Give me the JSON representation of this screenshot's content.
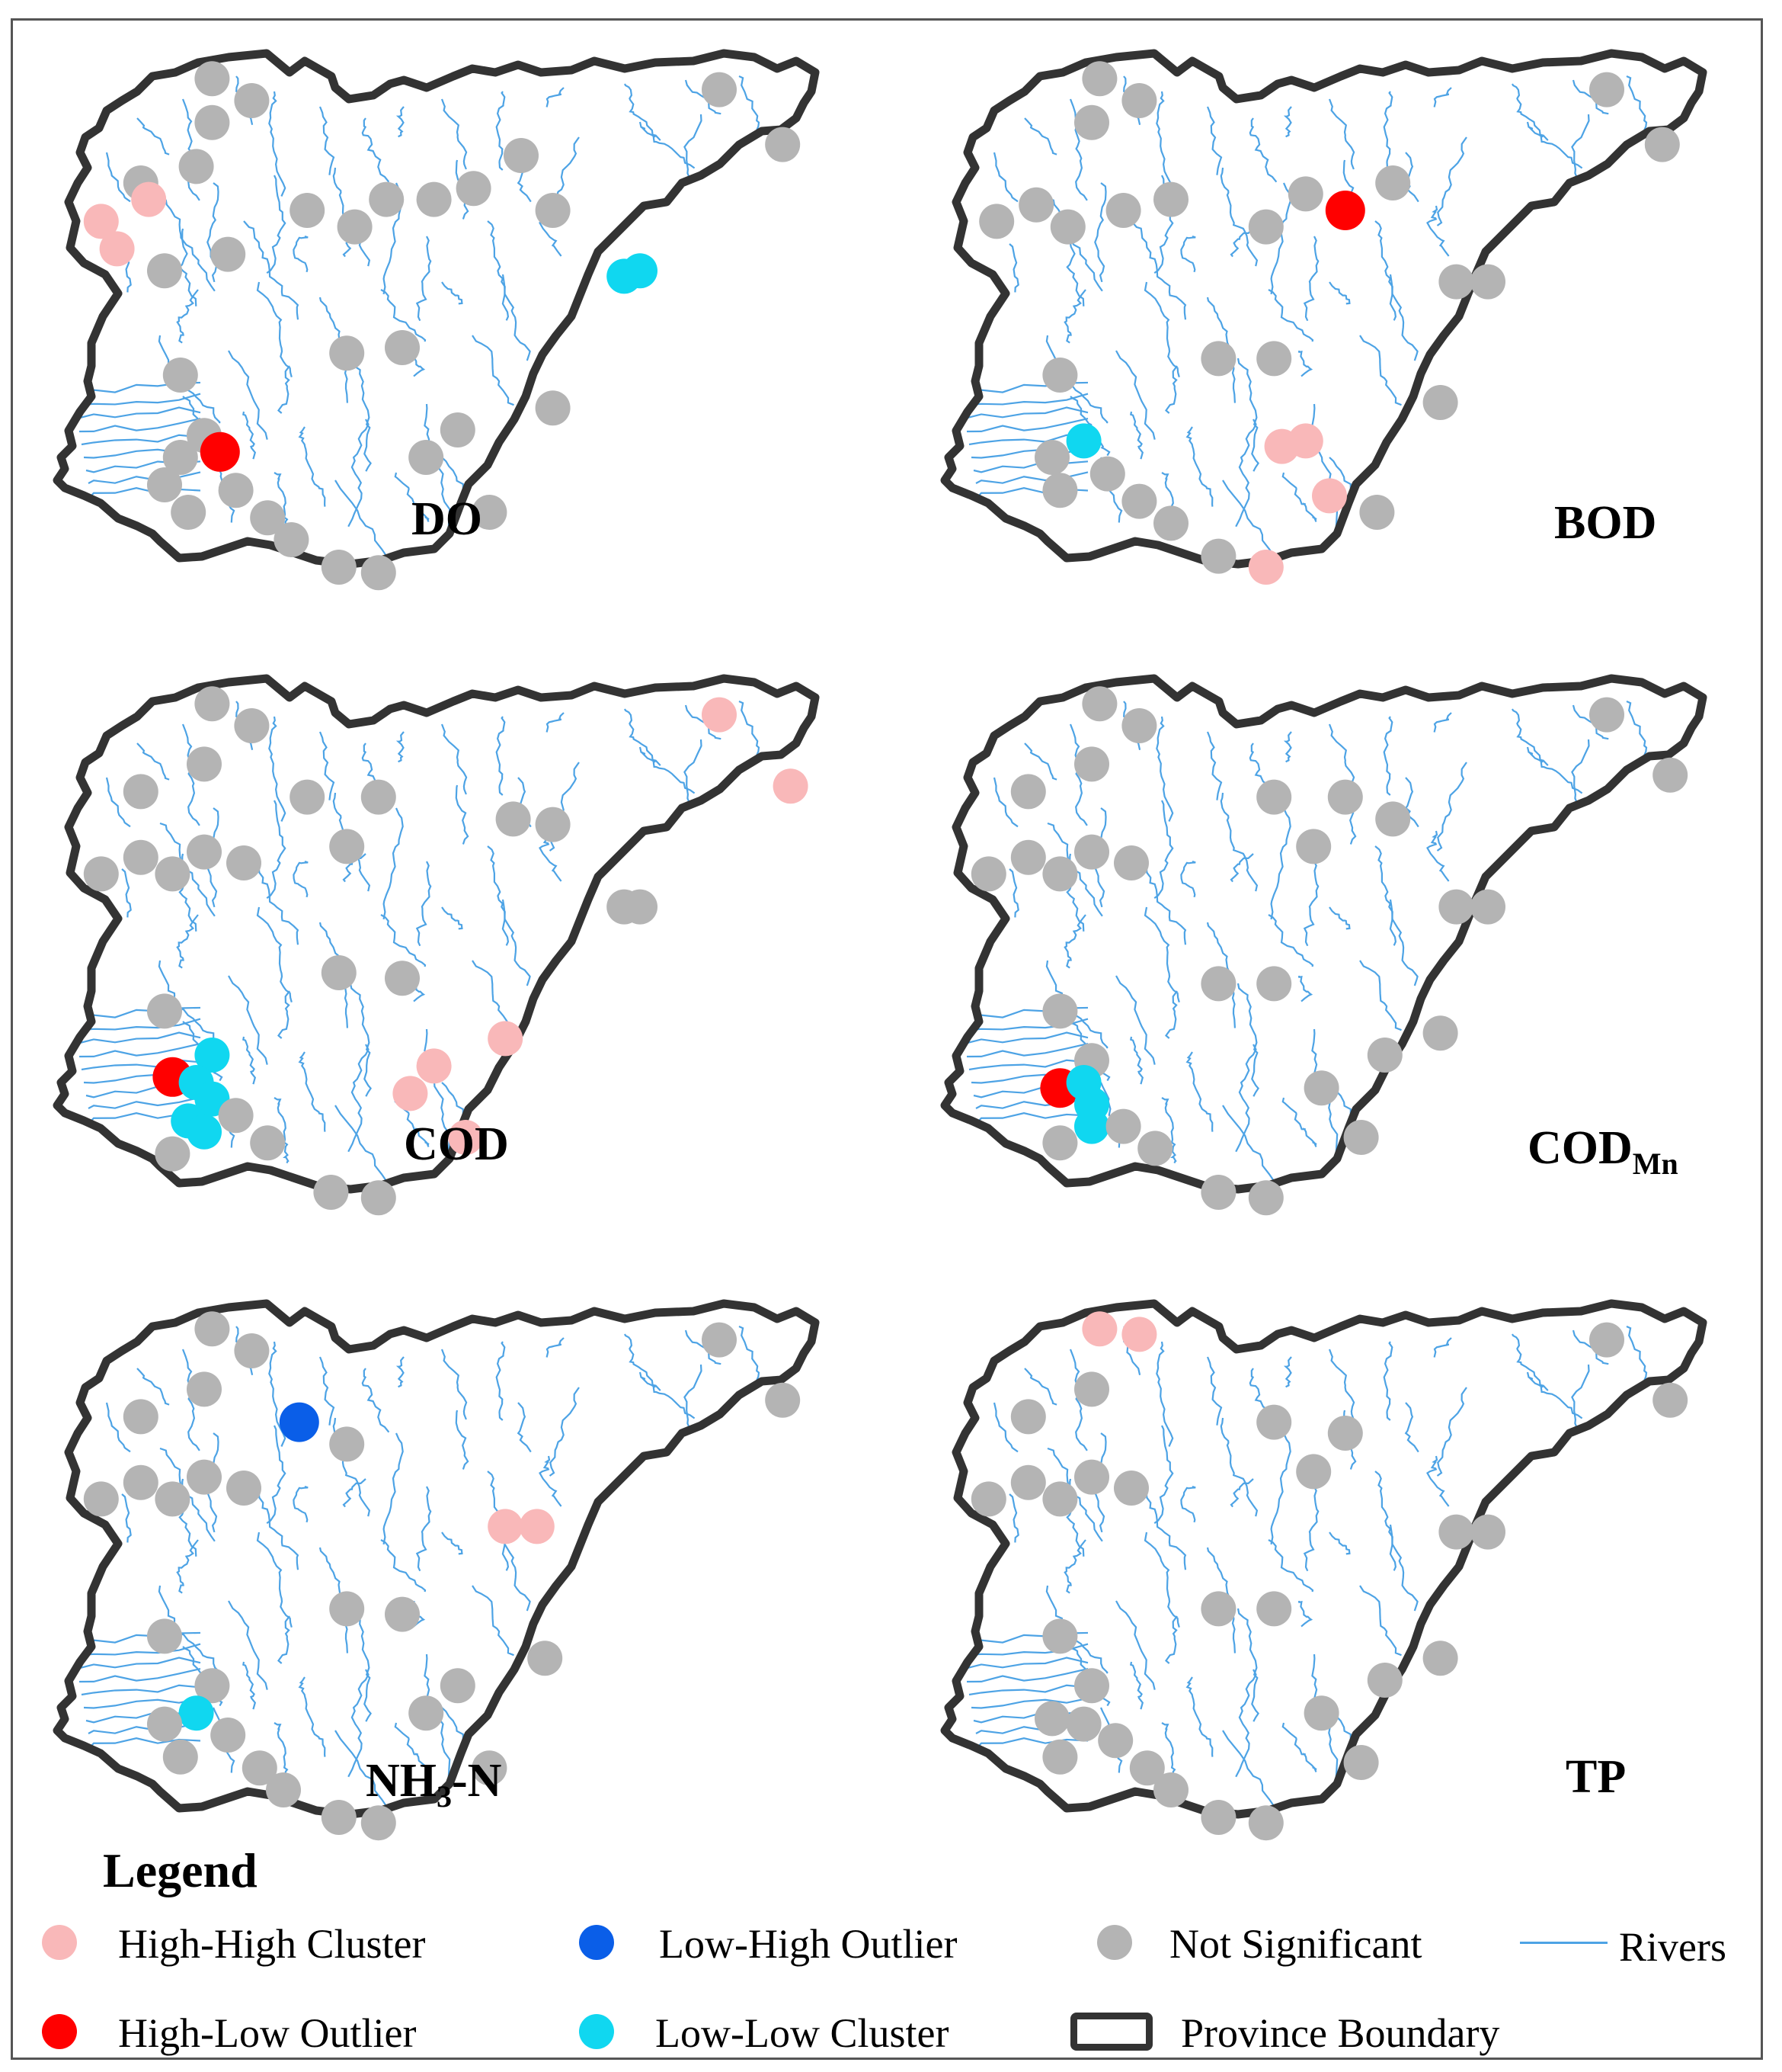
{
  "colors": {
    "high_high": "#f9b8b9",
    "high_low": "#ff0000",
    "low_high": "#0a5ee8",
    "low_low": "#10d7f0",
    "not_significant": "#b4b4b4",
    "rivers": "#4da3e5",
    "boundary": "#333333"
  },
  "panels": [
    {
      "label_main": "DO",
      "label_sub": "",
      "label_tail": "",
      "points": [
        {
          "x": 0.21,
          "y": 0.06,
          "cls": "ns"
        },
        {
          "x": 0.26,
          "y": 0.1,
          "cls": "ns"
        },
        {
          "x": 0.21,
          "y": 0.14,
          "cls": "ns"
        },
        {
          "x": 0.19,
          "y": 0.22,
          "cls": "ns"
        },
        {
          "x": 0.12,
          "y": 0.25,
          "cls": "ns"
        },
        {
          "x": 0.07,
          "y": 0.32,
          "cls": "hh"
        },
        {
          "x": 0.13,
          "y": 0.28,
          "cls": "hh"
        },
        {
          "x": 0.09,
          "y": 0.37,
          "cls": "hh"
        },
        {
          "x": 0.15,
          "y": 0.41,
          "cls": "ns"
        },
        {
          "x": 0.23,
          "y": 0.38,
          "cls": "ns"
        },
        {
          "x": 0.33,
          "y": 0.3,
          "cls": "ns"
        },
        {
          "x": 0.39,
          "y": 0.33,
          "cls": "ns"
        },
        {
          "x": 0.43,
          "y": 0.28,
          "cls": "ns"
        },
        {
          "x": 0.49,
          "y": 0.28,
          "cls": "ns"
        },
        {
          "x": 0.54,
          "y": 0.26,
          "cls": "ns"
        },
        {
          "x": 0.6,
          "y": 0.2,
          "cls": "ns"
        },
        {
          "x": 0.64,
          "y": 0.3,
          "cls": "ns"
        },
        {
          "x": 0.73,
          "y": 0.42,
          "cls": "ll"
        },
        {
          "x": 0.75,
          "y": 0.41,
          "cls": "ll"
        },
        {
          "x": 0.85,
          "y": 0.08,
          "cls": "ns"
        },
        {
          "x": 0.93,
          "y": 0.18,
          "cls": "ns"
        },
        {
          "x": 0.38,
          "y": 0.56,
          "cls": "ns"
        },
        {
          "x": 0.45,
          "y": 0.55,
          "cls": "ns"
        },
        {
          "x": 0.17,
          "y": 0.6,
          "cls": "ns"
        },
        {
          "x": 0.2,
          "y": 0.71,
          "cls": "ns"
        },
        {
          "x": 0.22,
          "y": 0.74,
          "cls": "hl"
        },
        {
          "x": 0.17,
          "y": 0.75,
          "cls": "ns"
        },
        {
          "x": 0.15,
          "y": 0.8,
          "cls": "ns"
        },
        {
          "x": 0.18,
          "y": 0.85,
          "cls": "ns"
        },
        {
          "x": 0.24,
          "y": 0.81,
          "cls": "ns"
        },
        {
          "x": 0.28,
          "y": 0.86,
          "cls": "ns"
        },
        {
          "x": 0.31,
          "y": 0.9,
          "cls": "ns"
        },
        {
          "x": 0.37,
          "y": 0.95,
          "cls": "ns"
        },
        {
          "x": 0.42,
          "y": 0.96,
          "cls": "ns"
        },
        {
          "x": 0.48,
          "y": 0.75,
          "cls": "ns"
        },
        {
          "x": 0.52,
          "y": 0.7,
          "cls": "ns"
        },
        {
          "x": 0.56,
          "y": 0.85,
          "cls": "ns"
        },
        {
          "x": 0.64,
          "y": 0.66,
          "cls": "ns"
        }
      ]
    },
    {
      "label_main": "BOD",
      "label_sub": "",
      "label_tail": "",
      "points": [
        {
          "x": 0.21,
          "y": 0.06,
          "cls": "ns"
        },
        {
          "x": 0.26,
          "y": 0.1,
          "cls": "ns"
        },
        {
          "x": 0.2,
          "y": 0.14,
          "cls": "ns"
        },
        {
          "x": 0.08,
          "y": 0.32,
          "cls": "ns"
        },
        {
          "x": 0.13,
          "y": 0.29,
          "cls": "ns"
        },
        {
          "x": 0.17,
          "y": 0.33,
          "cls": "ns"
        },
        {
          "x": 0.24,
          "y": 0.3,
          "cls": "ns"
        },
        {
          "x": 0.3,
          "y": 0.28,
          "cls": "ns"
        },
        {
          "x": 0.42,
          "y": 0.33,
          "cls": "ns"
        },
        {
          "x": 0.47,
          "y": 0.27,
          "cls": "ns"
        },
        {
          "x": 0.52,
          "y": 0.3,
          "cls": "hl"
        },
        {
          "x": 0.58,
          "y": 0.25,
          "cls": "ns"
        },
        {
          "x": 0.66,
          "y": 0.43,
          "cls": "ns"
        },
        {
          "x": 0.7,
          "y": 0.43,
          "cls": "ns"
        },
        {
          "x": 0.85,
          "y": 0.08,
          "cls": "ns"
        },
        {
          "x": 0.92,
          "y": 0.18,
          "cls": "ns"
        },
        {
          "x": 0.36,
          "y": 0.57,
          "cls": "ns"
        },
        {
          "x": 0.43,
          "y": 0.57,
          "cls": "ns"
        },
        {
          "x": 0.16,
          "y": 0.6,
          "cls": "ns"
        },
        {
          "x": 0.19,
          "y": 0.72,
          "cls": "ll"
        },
        {
          "x": 0.15,
          "y": 0.75,
          "cls": "ns"
        },
        {
          "x": 0.16,
          "y": 0.81,
          "cls": "ns"
        },
        {
          "x": 0.22,
          "y": 0.78,
          "cls": "ns"
        },
        {
          "x": 0.26,
          "y": 0.83,
          "cls": "ns"
        },
        {
          "x": 0.3,
          "y": 0.87,
          "cls": "ns"
        },
        {
          "x": 0.36,
          "y": 0.93,
          "cls": "ns"
        },
        {
          "x": 0.42,
          "y": 0.95,
          "cls": "hh"
        },
        {
          "x": 0.44,
          "y": 0.73,
          "cls": "hh"
        },
        {
          "x": 0.47,
          "y": 0.72,
          "cls": "hh"
        },
        {
          "x": 0.5,
          "y": 0.82,
          "cls": "hh"
        },
        {
          "x": 0.56,
          "y": 0.85,
          "cls": "ns"
        },
        {
          "x": 0.64,
          "y": 0.65,
          "cls": "ns"
        }
      ]
    },
    {
      "label_main": "COD",
      "label_sub": "",
      "label_tail": "",
      "points": [
        {
          "x": 0.21,
          "y": 0.06,
          "cls": "ns"
        },
        {
          "x": 0.26,
          "y": 0.1,
          "cls": "ns"
        },
        {
          "x": 0.2,
          "y": 0.17,
          "cls": "ns"
        },
        {
          "x": 0.12,
          "y": 0.22,
          "cls": "ns"
        },
        {
          "x": 0.07,
          "y": 0.37,
          "cls": "ns"
        },
        {
          "x": 0.12,
          "y": 0.34,
          "cls": "ns"
        },
        {
          "x": 0.16,
          "y": 0.37,
          "cls": "ns"
        },
        {
          "x": 0.2,
          "y": 0.33,
          "cls": "ns"
        },
        {
          "x": 0.25,
          "y": 0.35,
          "cls": "ns"
        },
        {
          "x": 0.33,
          "y": 0.23,
          "cls": "ns"
        },
        {
          "x": 0.38,
          "y": 0.32,
          "cls": "ns"
        },
        {
          "x": 0.42,
          "y": 0.23,
          "cls": "ns"
        },
        {
          "x": 0.59,
          "y": 0.27,
          "cls": "ns"
        },
        {
          "x": 0.64,
          "y": 0.28,
          "cls": "ns"
        },
        {
          "x": 0.73,
          "y": 0.43,
          "cls": "ns"
        },
        {
          "x": 0.75,
          "y": 0.43,
          "cls": "ns"
        },
        {
          "x": 0.85,
          "y": 0.08,
          "cls": "hh"
        },
        {
          "x": 0.94,
          "y": 0.21,
          "cls": "hh"
        },
        {
          "x": 0.37,
          "y": 0.55,
          "cls": "ns"
        },
        {
          "x": 0.45,
          "y": 0.56,
          "cls": "ns"
        },
        {
          "x": 0.15,
          "y": 0.62,
          "cls": "ns"
        },
        {
          "x": 0.21,
          "y": 0.7,
          "cls": "ll"
        },
        {
          "x": 0.16,
          "y": 0.74,
          "cls": "hl"
        },
        {
          "x": 0.19,
          "y": 0.75,
          "cls": "ll"
        },
        {
          "x": 0.21,
          "y": 0.78,
          "cls": "ll"
        },
        {
          "x": 0.18,
          "y": 0.82,
          "cls": "ll"
        },
        {
          "x": 0.2,
          "y": 0.84,
          "cls": "ll"
        },
        {
          "x": 0.24,
          "y": 0.81,
          "cls": "ns"
        },
        {
          "x": 0.16,
          "y": 0.88,
          "cls": "ns"
        },
        {
          "x": 0.28,
          "y": 0.86,
          "cls": "ns"
        },
        {
          "x": 0.36,
          "y": 0.95,
          "cls": "ns"
        },
        {
          "x": 0.42,
          "y": 0.96,
          "cls": "ns"
        },
        {
          "x": 0.46,
          "y": 0.77,
          "cls": "hh"
        },
        {
          "x": 0.49,
          "y": 0.72,
          "cls": "hh"
        },
        {
          "x": 0.53,
          "y": 0.85,
          "cls": "hh"
        },
        {
          "x": 0.58,
          "y": 0.67,
          "cls": "hh"
        }
      ]
    },
    {
      "label_main": "COD",
      "label_sub": "Mn",
      "label_tail": "",
      "points": [
        {
          "x": 0.21,
          "y": 0.06,
          "cls": "ns"
        },
        {
          "x": 0.26,
          "y": 0.1,
          "cls": "ns"
        },
        {
          "x": 0.2,
          "y": 0.17,
          "cls": "ns"
        },
        {
          "x": 0.12,
          "y": 0.22,
          "cls": "ns"
        },
        {
          "x": 0.07,
          "y": 0.37,
          "cls": "ns"
        },
        {
          "x": 0.12,
          "y": 0.34,
          "cls": "ns"
        },
        {
          "x": 0.16,
          "y": 0.37,
          "cls": "ns"
        },
        {
          "x": 0.2,
          "y": 0.33,
          "cls": "ns"
        },
        {
          "x": 0.25,
          "y": 0.35,
          "cls": "ns"
        },
        {
          "x": 0.43,
          "y": 0.23,
          "cls": "ns"
        },
        {
          "x": 0.48,
          "y": 0.32,
          "cls": "ns"
        },
        {
          "x": 0.52,
          "y": 0.23,
          "cls": "ns"
        },
        {
          "x": 0.58,
          "y": 0.27,
          "cls": "ns"
        },
        {
          "x": 0.66,
          "y": 0.43,
          "cls": "ns"
        },
        {
          "x": 0.7,
          "y": 0.43,
          "cls": "ns"
        },
        {
          "x": 0.85,
          "y": 0.08,
          "cls": "ns"
        },
        {
          "x": 0.93,
          "y": 0.19,
          "cls": "ns"
        },
        {
          "x": 0.36,
          "y": 0.57,
          "cls": "ns"
        },
        {
          "x": 0.43,
          "y": 0.57,
          "cls": "ns"
        },
        {
          "x": 0.16,
          "y": 0.62,
          "cls": "ns"
        },
        {
          "x": 0.2,
          "y": 0.71,
          "cls": "ns"
        },
        {
          "x": 0.16,
          "y": 0.76,
          "cls": "hl"
        },
        {
          "x": 0.19,
          "y": 0.75,
          "cls": "ll"
        },
        {
          "x": 0.2,
          "y": 0.79,
          "cls": "ll"
        },
        {
          "x": 0.2,
          "y": 0.83,
          "cls": "ll"
        },
        {
          "x": 0.16,
          "y": 0.86,
          "cls": "ns"
        },
        {
          "x": 0.24,
          "y": 0.83,
          "cls": "ns"
        },
        {
          "x": 0.28,
          "y": 0.87,
          "cls": "ns"
        },
        {
          "x": 0.36,
          "y": 0.95,
          "cls": "ns"
        },
        {
          "x": 0.42,
          "y": 0.96,
          "cls": "ns"
        },
        {
          "x": 0.49,
          "y": 0.76,
          "cls": "ns"
        },
        {
          "x": 0.54,
          "y": 0.85,
          "cls": "ns"
        },
        {
          "x": 0.57,
          "y": 0.7,
          "cls": "ns"
        },
        {
          "x": 0.64,
          "y": 0.66,
          "cls": "ns"
        }
      ]
    },
    {
      "label_main": "NH",
      "label_sub": "3",
      "label_tail": "-N",
      "points": [
        {
          "x": 0.21,
          "y": 0.06,
          "cls": "ns"
        },
        {
          "x": 0.26,
          "y": 0.1,
          "cls": "ns"
        },
        {
          "x": 0.2,
          "y": 0.17,
          "cls": "ns"
        },
        {
          "x": 0.12,
          "y": 0.22,
          "cls": "ns"
        },
        {
          "x": 0.07,
          "y": 0.37,
          "cls": "ns"
        },
        {
          "x": 0.12,
          "y": 0.34,
          "cls": "ns"
        },
        {
          "x": 0.16,
          "y": 0.37,
          "cls": "ns"
        },
        {
          "x": 0.2,
          "y": 0.33,
          "cls": "ns"
        },
        {
          "x": 0.25,
          "y": 0.35,
          "cls": "ns"
        },
        {
          "x": 0.32,
          "y": 0.23,
          "cls": "lh"
        },
        {
          "x": 0.38,
          "y": 0.27,
          "cls": "ns"
        },
        {
          "x": 0.58,
          "y": 0.42,
          "cls": "hh"
        },
        {
          "x": 0.62,
          "y": 0.42,
          "cls": "hh"
        },
        {
          "x": 0.85,
          "y": 0.08,
          "cls": "ns"
        },
        {
          "x": 0.93,
          "y": 0.19,
          "cls": "ns"
        },
        {
          "x": 0.38,
          "y": 0.57,
          "cls": "ns"
        },
        {
          "x": 0.45,
          "y": 0.58,
          "cls": "ns"
        },
        {
          "x": 0.15,
          "y": 0.62,
          "cls": "ns"
        },
        {
          "x": 0.21,
          "y": 0.71,
          "cls": "ns"
        },
        {
          "x": 0.19,
          "y": 0.76,
          "cls": "ll"
        },
        {
          "x": 0.15,
          "y": 0.78,
          "cls": "ns"
        },
        {
          "x": 0.17,
          "y": 0.84,
          "cls": "ns"
        },
        {
          "x": 0.23,
          "y": 0.8,
          "cls": "ns"
        },
        {
          "x": 0.27,
          "y": 0.86,
          "cls": "ns"
        },
        {
          "x": 0.3,
          "y": 0.9,
          "cls": "ns"
        },
        {
          "x": 0.37,
          "y": 0.95,
          "cls": "ns"
        },
        {
          "x": 0.42,
          "y": 0.96,
          "cls": "ns"
        },
        {
          "x": 0.48,
          "y": 0.76,
          "cls": "ns"
        },
        {
          "x": 0.52,
          "y": 0.71,
          "cls": "ns"
        },
        {
          "x": 0.56,
          "y": 0.86,
          "cls": "ns"
        },
        {
          "x": 0.63,
          "y": 0.66,
          "cls": "ns"
        }
      ]
    },
    {
      "label_main": "TP",
      "label_sub": "",
      "label_tail": "",
      "points": [
        {
          "x": 0.21,
          "y": 0.06,
          "cls": "hh"
        },
        {
          "x": 0.26,
          "y": 0.07,
          "cls": "hh"
        },
        {
          "x": 0.2,
          "y": 0.17,
          "cls": "ns"
        },
        {
          "x": 0.12,
          "y": 0.22,
          "cls": "ns"
        },
        {
          "x": 0.07,
          "y": 0.37,
          "cls": "ns"
        },
        {
          "x": 0.12,
          "y": 0.34,
          "cls": "ns"
        },
        {
          "x": 0.16,
          "y": 0.37,
          "cls": "ns"
        },
        {
          "x": 0.2,
          "y": 0.33,
          "cls": "ns"
        },
        {
          "x": 0.25,
          "y": 0.35,
          "cls": "ns"
        },
        {
          "x": 0.43,
          "y": 0.23,
          "cls": "ns"
        },
        {
          "x": 0.48,
          "y": 0.32,
          "cls": "ns"
        },
        {
          "x": 0.52,
          "y": 0.25,
          "cls": "ns"
        },
        {
          "x": 0.66,
          "y": 0.43,
          "cls": "ns"
        },
        {
          "x": 0.7,
          "y": 0.43,
          "cls": "ns"
        },
        {
          "x": 0.85,
          "y": 0.08,
          "cls": "ns"
        },
        {
          "x": 0.93,
          "y": 0.19,
          "cls": "ns"
        },
        {
          "x": 0.36,
          "y": 0.57,
          "cls": "ns"
        },
        {
          "x": 0.43,
          "y": 0.57,
          "cls": "ns"
        },
        {
          "x": 0.16,
          "y": 0.62,
          "cls": "ns"
        },
        {
          "x": 0.2,
          "y": 0.71,
          "cls": "ns"
        },
        {
          "x": 0.15,
          "y": 0.77,
          "cls": "ns"
        },
        {
          "x": 0.19,
          "y": 0.78,
          "cls": "ns"
        },
        {
          "x": 0.16,
          "y": 0.84,
          "cls": "ns"
        },
        {
          "x": 0.23,
          "y": 0.81,
          "cls": "ns"
        },
        {
          "x": 0.27,
          "y": 0.86,
          "cls": "ns"
        },
        {
          "x": 0.3,
          "y": 0.9,
          "cls": "ns"
        },
        {
          "x": 0.36,
          "y": 0.95,
          "cls": "ns"
        },
        {
          "x": 0.42,
          "y": 0.96,
          "cls": "ns"
        },
        {
          "x": 0.49,
          "y": 0.76,
          "cls": "ns"
        },
        {
          "x": 0.54,
          "y": 0.85,
          "cls": "ns"
        },
        {
          "x": 0.57,
          "y": 0.7,
          "cls": "ns"
        },
        {
          "x": 0.64,
          "y": 0.66,
          "cls": "ns"
        }
      ]
    }
  ],
  "legend": {
    "title": "Legend",
    "high_high": "High-High Cluster",
    "high_low": "High-Low Outlier",
    "low_high": "Low-High Outlier",
    "low_low": "Low-Low Cluster",
    "not_significant": "Not Significant",
    "rivers": "Rivers",
    "boundary": "Province Boundary"
  }
}
